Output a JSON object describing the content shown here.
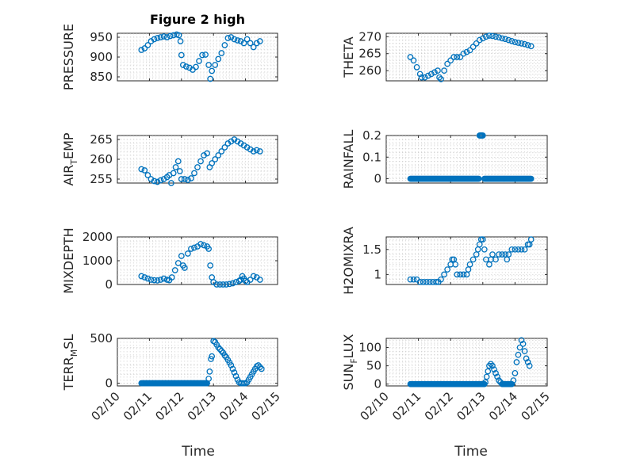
{
  "figure": {
    "title": "Figure 2 high",
    "xlabel": "Time",
    "marker_color": "#0072BD",
    "axis_color": "#262626"
  },
  "chart_data": [
    {
      "type": "scatter",
      "ylabel": "PRESSURE",
      "ylabel_sub": "",
      "ylabel_tail": "",
      "xlim": [
        10.0,
        15.0
      ],
      "ylim": [
        840,
        960
      ],
      "yticks": [
        850,
        900,
        950
      ],
      "xticks": [],
      "grid": true,
      "points": [
        [
          10.75,
          918
        ],
        [
          10.85,
          922
        ],
        [
          10.95,
          930
        ],
        [
          11.05,
          940
        ],
        [
          11.15,
          945
        ],
        [
          11.25,
          948
        ],
        [
          11.35,
          950
        ],
        [
          11.45,
          952
        ],
        [
          11.55,
          950
        ],
        [
          11.65,
          953
        ],
        [
          11.75,
          955
        ],
        [
          11.85,
          957
        ],
        [
          11.92,
          955
        ],
        [
          11.97,
          940
        ],
        [
          12.0,
          905
        ],
        [
          12.05,
          880
        ],
        [
          12.15,
          876
        ],
        [
          12.25,
          873
        ],
        [
          12.35,
          868
        ],
        [
          12.45,
          875
        ],
        [
          12.55,
          890
        ],
        [
          12.65,
          905
        ],
        [
          12.75,
          906
        ],
        [
          12.85,
          880
        ],
        [
          12.9,
          845
        ],
        [
          12.95,
          865
        ],
        [
          13.05,
          880
        ],
        [
          13.15,
          895
        ],
        [
          13.25,
          910
        ],
        [
          13.35,
          930
        ],
        [
          13.45,
          948
        ],
        [
          13.55,
          950
        ],
        [
          13.65,
          945
        ],
        [
          13.75,
          942
        ],
        [
          13.85,
          940
        ],
        [
          13.95,
          935
        ],
        [
          14.05,
          945
        ],
        [
          14.15,
          935
        ],
        [
          14.25,
          925
        ],
        [
          14.35,
          935
        ],
        [
          14.45,
          940
        ]
      ]
    },
    {
      "type": "scatter",
      "ylabel": "THETA",
      "ylabel_sub": "",
      "ylabel_tail": "",
      "xlim": [
        10.0,
        15.0
      ],
      "ylim": [
        257,
        271
      ],
      "yticks": [
        260,
        265,
        270
      ],
      "xticks": [],
      "grid": true,
      "points": [
        [
          10.75,
          264
        ],
        [
          10.85,
          263
        ],
        [
          10.95,
          261
        ],
        [
          11.05,
          259
        ],
        [
          11.1,
          258
        ],
        [
          11.2,
          258
        ],
        [
          11.3,
          258.5
        ],
        [
          11.4,
          259
        ],
        [
          11.5,
          259.5
        ],
        [
          11.6,
          260
        ],
        [
          11.65,
          258
        ],
        [
          11.7,
          257.5
        ],
        [
          11.8,
          260
        ],
        [
          11.9,
          262
        ],
        [
          12.0,
          263
        ],
        [
          12.1,
          264
        ],
        [
          12.2,
          264
        ],
        [
          12.3,
          264
        ],
        [
          12.4,
          265
        ],
        [
          12.5,
          265.5
        ],
        [
          12.6,
          266
        ],
        [
          12.7,
          267
        ],
        [
          12.8,
          268
        ],
        [
          12.9,
          269
        ],
        [
          13.0,
          269.5
        ],
        [
          13.1,
          270
        ],
        [
          13.2,
          270.3
        ],
        [
          13.3,
          270.2
        ],
        [
          13.4,
          270
        ],
        [
          13.5,
          269.8
        ],
        [
          13.6,
          269.5
        ],
        [
          13.7,
          269.3
        ],
        [
          13.8,
          269
        ],
        [
          13.9,
          268.7
        ],
        [
          14.0,
          268.4
        ],
        [
          14.1,
          268.2
        ],
        [
          14.2,
          268
        ],
        [
          14.3,
          267.8
        ],
        [
          14.4,
          267.5
        ],
        [
          14.5,
          267.2
        ]
      ]
    },
    {
      "type": "scatter",
      "ylabel": "AIR",
      "ylabel_sub": "T",
      "ylabel_tail": "EMP",
      "xlim": [
        10.0,
        15.0
      ],
      "ylim": [
        254,
        266
      ],
      "yticks": [
        255,
        260,
        265
      ],
      "xticks": [],
      "grid": true,
      "points": [
        [
          10.75,
          257.5
        ],
        [
          10.85,
          257.2
        ],
        [
          10.95,
          256
        ],
        [
          11.05,
          255
        ],
        [
          11.15,
          254.5
        ],
        [
          11.25,
          254.3
        ],
        [
          11.35,
          254.7
        ],
        [
          11.45,
          255
        ],
        [
          11.55,
          255.5
        ],
        [
          11.62,
          256
        ],
        [
          11.68,
          254
        ],
        [
          11.75,
          256.5
        ],
        [
          11.82,
          258
        ],
        [
          11.9,
          259.5
        ],
        [
          11.95,
          257
        ],
        [
          12.0,
          255
        ],
        [
          12.1,
          255
        ],
        [
          12.2,
          254.8
        ],
        [
          12.3,
          255.2
        ],
        [
          12.4,
          256.5
        ],
        [
          12.5,
          258
        ],
        [
          12.6,
          259.5
        ],
        [
          12.7,
          261
        ],
        [
          12.8,
          261.5
        ],
        [
          12.88,
          258
        ],
        [
          12.95,
          259
        ],
        [
          13.05,
          260
        ],
        [
          13.15,
          261
        ],
        [
          13.25,
          262
        ],
        [
          13.35,
          263
        ],
        [
          13.45,
          264
        ],
        [
          13.55,
          264.5
        ],
        [
          13.65,
          265
        ],
        [
          13.75,
          264.5
        ],
        [
          13.85,
          264
        ],
        [
          13.95,
          263.5
        ],
        [
          14.05,
          263
        ],
        [
          14.15,
          262.5
        ],
        [
          14.25,
          262
        ],
        [
          14.35,
          262.3
        ],
        [
          14.45,
          262
        ]
      ]
    },
    {
      "type": "scatter",
      "ylabel": "RAINFALL",
      "ylabel_sub": "",
      "ylabel_tail": "",
      "xlim": [
        10.0,
        15.0
      ],
      "ylim": [
        -0.02,
        0.2
      ],
      "yticks": [
        0,
        0.1,
        0.2
      ],
      "xticks": [],
      "grid": true,
      "dense_segments": [
        [
          10.75,
          12.88,
          0
        ],
        [
          12.9,
          13.02,
          0.2
        ],
        [
          13.05,
          14.5,
          0
        ]
      ],
      "points": []
    },
    {
      "type": "scatter",
      "ylabel": "MIXDEPTH",
      "ylabel_sub": "",
      "ylabel_tail": "",
      "xlim": [
        10.0,
        15.0
      ],
      "ylim": [
        0,
        2000
      ],
      "yticks": [
        0,
        1000,
        2000
      ],
      "xticks": [],
      "grid": true,
      "points": [
        [
          10.75,
          350
        ],
        [
          10.85,
          300
        ],
        [
          10.95,
          250
        ],
        [
          11.05,
          200
        ],
        [
          11.15,
          180
        ],
        [
          11.25,
          170
        ],
        [
          11.35,
          200
        ],
        [
          11.45,
          250
        ],
        [
          11.55,
          200
        ],
        [
          11.62,
          180
        ],
        [
          11.7,
          300
        ],
        [
          11.8,
          600
        ],
        [
          11.9,
          900
        ],
        [
          12.0,
          1200
        ],
        [
          12.05,
          800
        ],
        [
          12.1,
          700
        ],
        [
          12.2,
          1300
        ],
        [
          12.3,
          1500
        ],
        [
          12.4,
          1550
        ],
        [
          12.5,
          1600
        ],
        [
          12.6,
          1700
        ],
        [
          12.7,
          1650
        ],
        [
          12.8,
          1600
        ],
        [
          12.85,
          1500
        ],
        [
          12.9,
          800
        ],
        [
          12.95,
          300
        ],
        [
          13.0,
          100
        ],
        [
          13.1,
          0
        ],
        [
          13.2,
          0
        ],
        [
          13.3,
          0
        ],
        [
          13.4,
          0
        ],
        [
          13.5,
          20
        ],
        [
          13.6,
          50
        ],
        [
          13.7,
          100
        ],
        [
          13.8,
          150
        ],
        [
          13.85,
          200
        ],
        [
          13.9,
          350
        ],
        [
          13.95,
          250
        ],
        [
          14.0,
          150
        ],
        [
          14.05,
          100
        ],
        [
          14.15,
          200
        ],
        [
          14.25,
          350
        ],
        [
          14.35,
          300
        ],
        [
          14.45,
          200
        ]
      ]
    },
    {
      "type": "scatter",
      "ylabel": "H2OMIXRA",
      "ylabel_sub": "",
      "ylabel_tail": "",
      "xlim": [
        10.0,
        15.0
      ],
      "ylim": [
        0.8,
        1.75
      ],
      "yticks": [
        1,
        1.5
      ],
      "xticks": [],
      "grid": true,
      "points": [
        [
          10.75,
          0.9
        ],
        [
          10.85,
          0.9
        ],
        [
          10.95,
          0.9
        ],
        [
          11.05,
          0.85
        ],
        [
          11.15,
          0.85
        ],
        [
          11.25,
          0.85
        ],
        [
          11.35,
          0.85
        ],
        [
          11.45,
          0.85
        ],
        [
          11.55,
          0.85
        ],
        [
          11.62,
          0.85
        ],
        [
          11.7,
          0.9
        ],
        [
          11.8,
          1.0
        ],
        [
          11.9,
          1.1
        ],
        [
          12.0,
          1.2
        ],
        [
          12.05,
          1.3
        ],
        [
          12.1,
          1.3
        ],
        [
          12.15,
          1.2
        ],
        [
          12.2,
          1.0
        ],
        [
          12.3,
          1.0
        ],
        [
          12.4,
          1.0
        ],
        [
          12.5,
          1.0
        ],
        [
          12.55,
          1.1
        ],
        [
          12.6,
          1.2
        ],
        [
          12.7,
          1.3
        ],
        [
          12.8,
          1.4
        ],
        [
          12.85,
          1.5
        ],
        [
          12.9,
          1.6
        ],
        [
          12.95,
          1.7
        ],
        [
          13.0,
          1.7
        ],
        [
          13.05,
          1.5
        ],
        [
          13.1,
          1.3
        ],
        [
          13.2,
          1.2
        ],
        [
          13.25,
          1.3
        ],
        [
          13.3,
          1.4
        ],
        [
          13.4,
          1.3
        ],
        [
          13.5,
          1.4
        ],
        [
          13.6,
          1.4
        ],
        [
          13.7,
          1.4
        ],
        [
          13.75,
          1.3
        ],
        [
          13.8,
          1.4
        ],
        [
          13.9,
          1.5
        ],
        [
          14.0,
          1.5
        ],
        [
          14.1,
          1.5
        ],
        [
          14.2,
          1.5
        ],
        [
          14.3,
          1.5
        ],
        [
          14.4,
          1.6
        ],
        [
          14.45,
          1.6
        ],
        [
          14.5,
          1.7
        ]
      ]
    },
    {
      "type": "scatter",
      "ylabel": "TERR",
      "ylabel_sub": "M",
      "ylabel_tail": "SL",
      "xlim": [
        10.0,
        15.0
      ],
      "ylim": [
        -30,
        500
      ],
      "yticks": [
        0,
        500
      ],
      "xticks": [
        "02/10",
        "02/11",
        "02/12",
        "02/13",
        "02/14",
        "02/15"
      ],
      "grid": true,
      "dense_segments": [
        [
          10.75,
          12.82,
          0
        ]
      ],
      "points": [
        [
          12.85,
          50
        ],
        [
          12.88,
          130
        ],
        [
          12.92,
          270
        ],
        [
          12.95,
          300
        ],
        [
          13.0,
          470
        ],
        [
          13.05,
          460
        ],
        [
          13.1,
          430
        ],
        [
          13.15,
          400
        ],
        [
          13.2,
          380
        ],
        [
          13.25,
          360
        ],
        [
          13.3,
          340
        ],
        [
          13.35,
          310
        ],
        [
          13.4,
          290
        ],
        [
          13.45,
          260
        ],
        [
          13.5,
          230
        ],
        [
          13.55,
          200
        ],
        [
          13.6,
          160
        ],
        [
          13.65,
          120
        ],
        [
          13.7,
          80
        ],
        [
          13.75,
          40
        ],
        [
          13.8,
          10
        ],
        [
          13.85,
          0
        ],
        [
          13.9,
          0
        ],
        [
          13.95,
          0
        ],
        [
          14.0,
          0
        ],
        [
          14.05,
          10
        ],
        [
          14.1,
          40
        ],
        [
          14.15,
          70
        ],
        [
          14.2,
          100
        ],
        [
          14.25,
          130
        ],
        [
          14.3,
          160
        ],
        [
          14.35,
          190
        ],
        [
          14.4,
          200
        ],
        [
          14.45,
          180
        ],
        [
          14.5,
          160
        ]
      ]
    },
    {
      "type": "scatter",
      "ylabel": "SUN",
      "ylabel_sub": "F",
      "ylabel_tail": "LUX",
      "xlim": [
        10.0,
        15.0
      ],
      "ylim": [
        -5,
        125
      ],
      "yticks": [
        0,
        50,
        100
      ],
      "xticks": [
        "02/10",
        "02/11",
        "02/12",
        "02/13",
        "02/14",
        "02/15"
      ],
      "grid": true,
      "dense_segments": [
        [
          10.75,
          13.05,
          0
        ],
        [
          13.6,
          13.9,
          0
        ]
      ],
      "points": [
        [
          13.08,
          5
        ],
        [
          13.12,
          20
        ],
        [
          13.16,
          35
        ],
        [
          13.2,
          50
        ],
        [
          13.25,
          55
        ],
        [
          13.3,
          50
        ],
        [
          13.35,
          40
        ],
        [
          13.4,
          30
        ],
        [
          13.45,
          20
        ],
        [
          13.5,
          10
        ],
        [
          13.55,
          5
        ],
        [
          13.95,
          10
        ],
        [
          14.0,
          30
        ],
        [
          14.05,
          60
        ],
        [
          14.1,
          80
        ],
        [
          14.15,
          100
        ],
        [
          14.2,
          120
        ],
        [
          14.25,
          110
        ],
        [
          14.3,
          90
        ],
        [
          14.35,
          70
        ],
        [
          14.4,
          60
        ],
        [
          14.45,
          50
        ]
      ]
    }
  ]
}
